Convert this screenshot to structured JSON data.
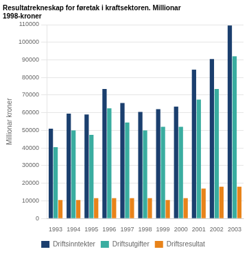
{
  "chart_data": {
    "type": "bar",
    "title": [
      "Resultatrekneskap for føretak i kraftsektoren. Millionar",
      "1998-kroner"
    ],
    "y_label": "Millionar kroner",
    "categories": [
      "1993",
      "1994",
      "1995",
      "1996",
      "1997",
      "1998",
      "1999",
      "2000",
      "2001",
      "2002",
      "2003"
    ],
    "series": [
      {
        "name": "Driftsinntekter",
        "color": "#1b3f6e",
        "values": [
          51000,
          59500,
          59000,
          73500,
          65500,
          60500,
          62000,
          63500,
          84500,
          90500,
          109500
        ]
      },
      {
        "name": "Driftsutgifter",
        "color": "#3aada0",
        "values": [
          40500,
          50000,
          47500,
          62500,
          54500,
          50000,
          52000,
          52000,
          67500,
          73500,
          92000
        ]
      },
      {
        "name": "Driftsresultat",
        "color": "#e8831a",
        "values": [
          10500,
          10500,
          11500,
          11500,
          11500,
          11500,
          10500,
          11500,
          17000,
          18000,
          18000
        ]
      }
    ],
    "ylim": [
      0,
      110000
    ],
    "yticks": [
      0,
      10000,
      20000,
      30000,
      40000,
      50000,
      60000,
      70000,
      80000,
      90000,
      100000,
      110000
    ],
    "grid": true,
    "legend": "bottom"
  }
}
